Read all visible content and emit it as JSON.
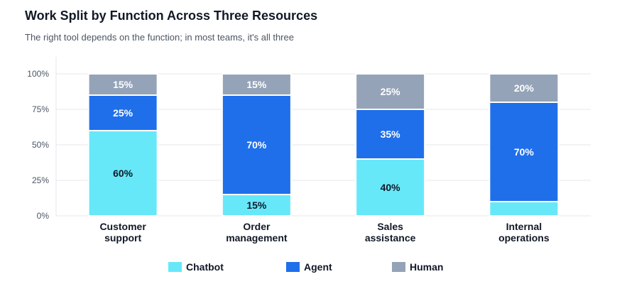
{
  "chart_data": {
    "type": "bar",
    "stacked": true,
    "title": "Work Split by Function Across Three Resources",
    "subtitle": "The right tool depends on the function; in most teams, it's all three",
    "categories": [
      [
        "Customer",
        "support"
      ],
      [
        "Order",
        "management"
      ],
      [
        "Sales",
        "assistance"
      ],
      [
        "Internal",
        "operations"
      ]
    ],
    "series": [
      {
        "name": "Chatbot",
        "color": "#67e8f9",
        "label_color": "#111827",
        "values": [
          60,
          15,
          40,
          10
        ],
        "labels": [
          "60%",
          "15%",
          "40%",
          ""
        ]
      },
      {
        "name": "Agent",
        "color": "#1f6feb",
        "label_color": "#ffffff",
        "values": [
          25,
          70,
          35,
          70
        ],
        "labels": [
          "25%",
          "70%",
          "35%",
          "70%"
        ]
      },
      {
        "name": "Human",
        "color": "#94a3b8",
        "label_color": "#ffffff",
        "values": [
          15,
          15,
          25,
          20
        ],
        "labels": [
          "15%",
          "15%",
          "25%",
          "20%"
        ]
      }
    ],
    "y_ticks": [
      "0%",
      "25%",
      "50%",
      "75%",
      "100%"
    ],
    "ylim": [
      0,
      100
    ],
    "grid": true,
    "legend_position": "bottom"
  }
}
